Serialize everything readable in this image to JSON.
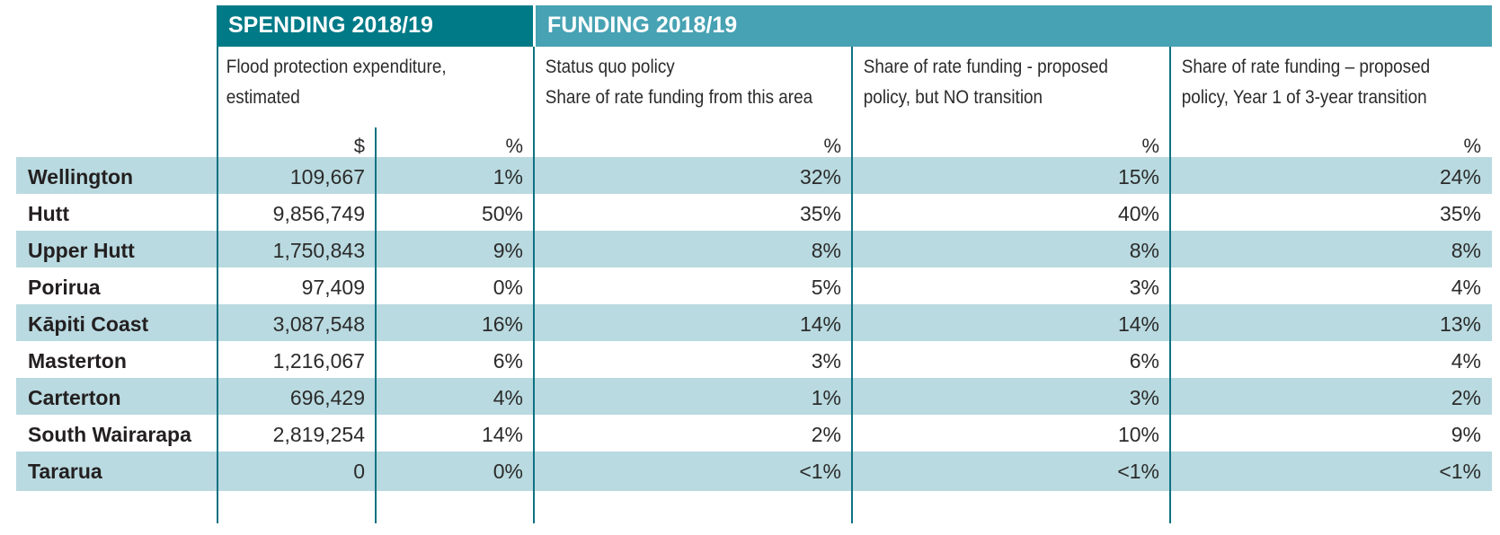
{
  "header": {
    "spending_title": "SPENDING 2018/19",
    "funding_title": "FUNDING 2018/19"
  },
  "columns": {
    "spending": {
      "label_line1": "Flood protection expenditure,",
      "label_line2": "estimated",
      "unit_dollar": "$",
      "unit_percent": "%"
    },
    "status_quo": {
      "label_line1": "Status quo policy",
      "label_line2": "Share of rate funding from this area",
      "unit": "%"
    },
    "proposed_no_transition": {
      "label_line1": "Share of rate funding - proposed",
      "label_line2": "policy, but NO transition",
      "unit": "%"
    },
    "proposed_year1": {
      "label_line1": "Share of rate funding – proposed",
      "label_line2": "policy, Year 1 of 3-year transition",
      "unit": "%"
    }
  },
  "colors": {
    "spending_banner": "#007a87",
    "funding_banner": "#47a2b3",
    "row_stripe": "#b9dae0",
    "divider": "#0d7282"
  },
  "rows": [
    {
      "area": "Wellington",
      "spend_dollars": "109,667",
      "spend_pct": "1%",
      "status_quo": "32%",
      "no_transition": "15%",
      "year1": "24%"
    },
    {
      "area": "Hutt",
      "spend_dollars": "9,856,749",
      "spend_pct": "50%",
      "status_quo": "35%",
      "no_transition": "40%",
      "year1": "35%"
    },
    {
      "area": "Upper Hutt",
      "spend_dollars": "1,750,843",
      "spend_pct": "9%",
      "status_quo": "8%",
      "no_transition": "8%",
      "year1": "8%"
    },
    {
      "area": "Porirua",
      "spend_dollars": "97,409",
      "spend_pct": "0%",
      "status_quo": "5%",
      "no_transition": "3%",
      "year1": "4%"
    },
    {
      "area": "Kāpiti Coast",
      "spend_dollars": "3,087,548",
      "spend_pct": "16%",
      "status_quo": "14%",
      "no_transition": "14%",
      "year1": "13%"
    },
    {
      "area": "Masterton",
      "spend_dollars": "1,216,067",
      "spend_pct": "6%",
      "status_quo": "3%",
      "no_transition": "6%",
      "year1": "4%"
    },
    {
      "area": "Carterton",
      "spend_dollars": "696,429",
      "spend_pct": "4%",
      "status_quo": "1%",
      "no_transition": "3%",
      "year1": "2%"
    },
    {
      "area": "South Wairarapa",
      "spend_dollars": "2,819,254",
      "spend_pct": "14%",
      "status_quo": "2%",
      "no_transition": "10%",
      "year1": "9%"
    },
    {
      "area": "Tararua",
      "spend_dollars": "0",
      "spend_pct": "0%",
      "status_quo": "<1%",
      "no_transition": "<1%",
      "year1": "<1%"
    }
  ]
}
